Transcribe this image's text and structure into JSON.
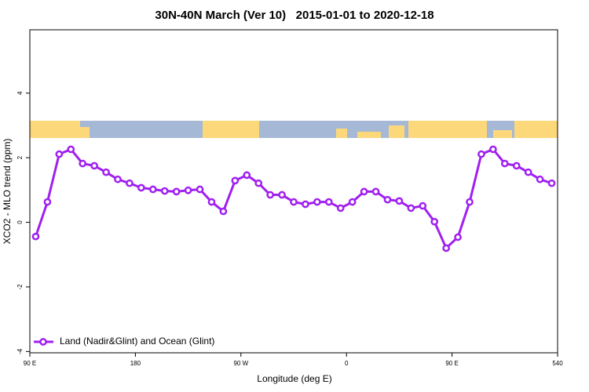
{
  "chart_data": {
    "type": "line",
    "title": "30N-40N March (Ver 10)   2015-01-01 to 2020-12-18",
    "x_label": "Longitude (deg E)",
    "y_label": "XCO2 - MLO trend (ppm)",
    "x": [
      95,
      105,
      115,
      125,
      135,
      145,
      155,
      165,
      175,
      185,
      195,
      205,
      215,
      225,
      235,
      245,
      255,
      265,
      275,
      285,
      295,
      305,
      315,
      325,
      335,
      345,
      355,
      365,
      375,
      385,
      395,
      405,
      415,
      425,
      435,
      445,
      455,
      465,
      475,
      485,
      495,
      505,
      515,
      525,
      535
    ],
    "series": [
      {
        "name": "Land (Nadir&Glint) and Ocean (Glint)",
        "color": "#a020f0",
        "values": [
          -0.44,
          0.63,
          2.11,
          2.26,
          1.82,
          1.75,
          1.55,
          1.33,
          1.21,
          1.07,
          1.02,
          0.97,
          0.95,
          0.99,
          1.02,
          0.63,
          0.34,
          1.29,
          1.46,
          1.21,
          0.85,
          0.85,
          0.63,
          0.56,
          0.63,
          0.63,
          0.44,
          0.63,
          0.95,
          0.95,
          0.7,
          0.66,
          0.44,
          0.51,
          0.02,
          -0.8,
          -0.46,
          0.63,
          2.11,
          2.26,
          1.82,
          1.75,
          1.55,
          1.33,
          1.21
        ]
      }
    ],
    "xlim": [
      90,
      540
    ],
    "xticks": [
      {
        "value": 90,
        "label": "90 E"
      },
      180,
      {
        "value": 270,
        "label": "90 W"
      },
      {
        "value": 360,
        "label": "0"
      },
      {
        "value": 450,
        "label": "90 E"
      },
      540
    ],
    "ylim": [
      -4.04,
      5.96
    ],
    "yticks": [
      -4,
      -2,
      0,
      2,
      4
    ],
    "legend": "bottom-left"
  }
}
